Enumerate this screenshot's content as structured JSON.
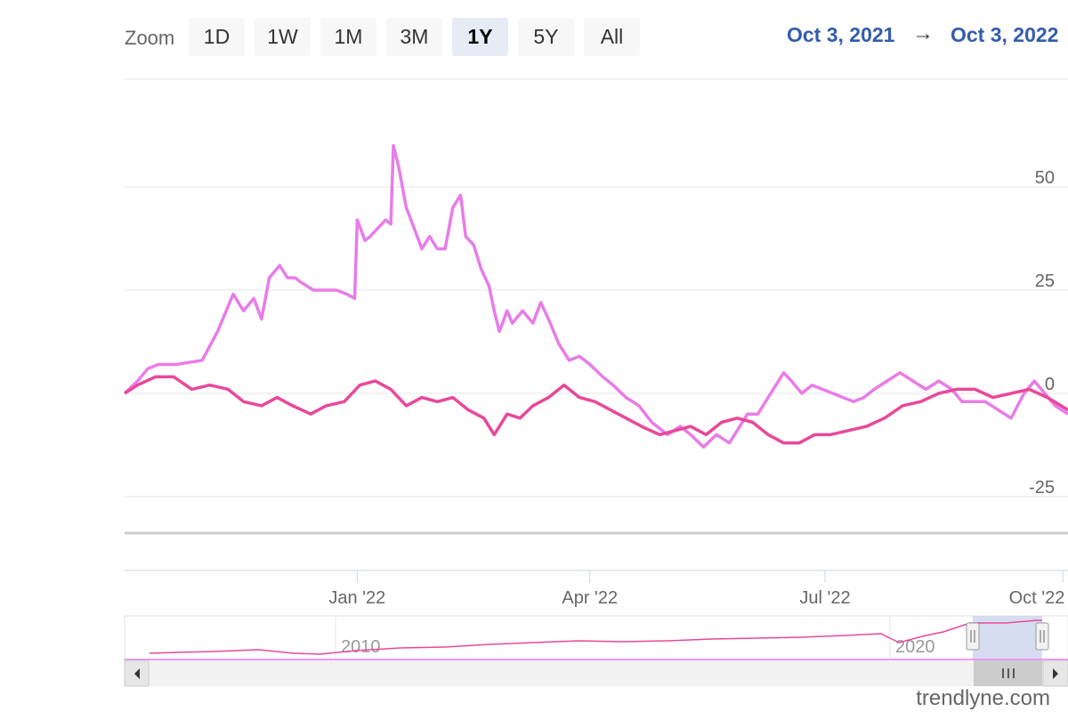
{
  "toolbar": {
    "zoom_label": "Zoom",
    "buttons": [
      "1D",
      "1W",
      "1M",
      "3M",
      "1Y",
      "5Y",
      "All"
    ],
    "active_button": "1Y",
    "range_from": "Oct 3, 2021",
    "range_arrow": "→",
    "range_to": "Oct 3, 2022"
  },
  "watermark": "trendlyne.com",
  "navigator": {
    "year_labels": [
      "2010",
      "2020"
    ]
  },
  "colors": {
    "series_1": "#e87ce8",
    "series_2": "#e8489a",
    "gridline": "#e6e6e6",
    "range_text": "#335cad",
    "navigator_mask": "#ccd4ee"
  },
  "chart_data": {
    "type": "line",
    "ylim": [
      -25,
      60
    ],
    "y_ticks": [
      50,
      25,
      0,
      -25
    ],
    "x_ticks": [
      "Jan '22",
      "Apr '22",
      "Jul '22",
      "Oct '22"
    ],
    "grid": true,
    "x_range": [
      "2021-10-03",
      "2022-10-03"
    ],
    "series": [
      {
        "x": [
          "2021-10-03",
          "2021-10-08",
          "2021-10-12",
          "2021-10-16",
          "2021-10-19",
          "2021-10-23",
          "2021-10-28",
          "2021-11-02",
          "2021-11-08",
          "2021-11-14",
          "2021-11-18",
          "2021-11-22",
          "2021-11-25",
          "2021-11-28",
          "2021-12-02",
          "2021-12-05",
          "2021-12-08",
          "2021-12-10",
          "2021-12-15",
          "2021-12-19",
          "2021-12-24",
          "2021-12-28",
          "2021-12-31",
          "2022-01-01",
          "2022-01-04",
          "2022-01-06",
          "2022-01-09",
          "2022-01-12",
          "2022-01-14",
          "2022-01-15",
          "2022-01-17",
          "2022-01-20",
          "2022-01-23",
          "2022-01-26",
          "2022-01-29",
          "2022-02-01",
          "2022-02-04",
          "2022-02-07",
          "2022-02-10",
          "2022-02-12",
          "2022-02-15",
          "2022-02-18",
          "2022-02-21",
          "2022-02-23",
          "2022-02-25",
          "2022-02-28",
          "2022-03-02",
          "2022-03-06",
          "2022-03-10",
          "2022-03-13",
          "2022-03-16",
          "2022-03-20",
          "2022-03-24",
          "2022-03-28",
          "2022-04-01",
          "2022-04-06",
          "2022-04-10",
          "2022-04-15",
          "2022-04-20",
          "2022-04-25",
          "2022-05-01",
          "2022-05-06",
          "2022-05-10",
          "2022-05-15",
          "2022-05-20",
          "2022-05-25",
          "2022-06-01",
          "2022-06-05",
          "2022-06-10",
          "2022-06-15",
          "2022-06-18",
          "2022-06-22",
          "2022-06-26",
          "2022-06-30",
          "2022-07-04",
          "2022-07-08",
          "2022-07-12",
          "2022-07-16",
          "2022-07-20",
          "2022-07-25",
          "2022-07-30",
          "2022-08-04",
          "2022-08-09",
          "2022-08-14",
          "2022-08-19",
          "2022-08-23",
          "2022-08-27",
          "2022-09-01",
          "2022-09-06",
          "2022-09-11",
          "2022-09-16",
          "2022-09-20",
          "2022-09-24",
          "2022-09-28",
          "2022-10-03"
        ],
        "values": [
          0,
          3,
          6,
          7,
          7,
          7,
          7.5,
          8,
          15,
          24,
          20,
          23,
          18,
          28,
          31,
          28,
          28,
          27,
          25,
          25,
          25,
          24,
          23,
          42,
          37,
          38,
          40,
          42,
          41,
          60,
          55,
          45,
          40,
          35,
          38,
          35,
          35,
          45,
          48,
          38,
          36,
          30,
          26,
          20,
          15,
          20,
          17,
          20,
          17,
          22,
          18,
          12,
          8,
          9,
          7,
          4,
          2,
          -1,
          -3,
          -7,
          -10,
          -8,
          -10,
          -13,
          -10,
          -12,
          -5,
          -5,
          0,
          5,
          3,
          0,
          2,
          1,
          0,
          -1,
          -2,
          -1,
          1,
          3,
          5,
          3,
          1,
          3,
          1,
          -2,
          -2,
          -2,
          -4,
          -6,
          0,
          3,
          0,
          -3,
          -5
        ]
      },
      {
        "x": [
          "2021-10-03",
          "2021-10-08",
          "2021-10-15",
          "2021-10-22",
          "2021-10-29",
          "2021-11-05",
          "2021-11-12",
          "2021-11-18",
          "2021-11-25",
          "2021-12-01",
          "2021-12-07",
          "2021-12-14",
          "2021-12-20",
          "2021-12-27",
          "2022-01-02",
          "2022-01-08",
          "2022-01-14",
          "2022-01-20",
          "2022-01-26",
          "2022-02-01",
          "2022-02-07",
          "2022-02-13",
          "2022-02-19",
          "2022-02-23",
          "2022-02-28",
          "2022-03-05",
          "2022-03-10",
          "2022-03-16",
          "2022-03-22",
          "2022-03-28",
          "2022-04-03",
          "2022-04-09",
          "2022-04-15",
          "2022-04-21",
          "2022-04-28",
          "2022-05-04",
          "2022-05-10",
          "2022-05-16",
          "2022-05-22",
          "2022-05-28",
          "2022-06-03",
          "2022-06-09",
          "2022-06-15",
          "2022-06-21",
          "2022-06-27",
          "2022-07-03",
          "2022-07-10",
          "2022-07-17",
          "2022-07-24",
          "2022-07-31",
          "2022-08-07",
          "2022-08-14",
          "2022-08-21",
          "2022-08-28",
          "2022-09-04",
          "2022-09-11",
          "2022-09-18",
          "2022-09-25",
          "2022-10-03"
        ],
        "values": [
          0,
          2,
          4,
          4,
          1,
          2,
          1,
          -2,
          -3,
          -1,
          -3,
          -5,
          -3,
          -2,
          2,
          3,
          1,
          -3,
          -1,
          -2,
          -1,
          -4,
          -6,
          -10,
          -5,
          -6,
          -3,
          -1,
          2,
          -1,
          -2,
          -4,
          -6,
          -8,
          -10,
          -9,
          -8,
          -10,
          -7,
          -6,
          -7,
          -10,
          -12,
          -12,
          -10,
          -10,
          -9,
          -8,
          -6,
          -3,
          -2,
          0,
          1,
          1,
          -1,
          0,
          1,
          -1,
          -4
        ]
      }
    ]
  }
}
